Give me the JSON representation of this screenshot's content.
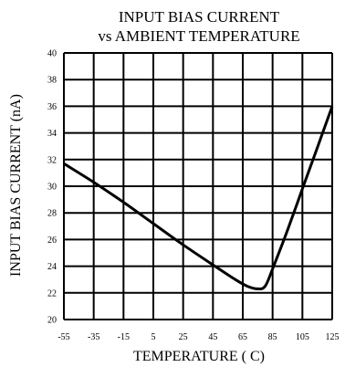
{
  "chart_data": {
    "type": "line",
    "title_lines": [
      "INPUT BIAS CURRENT",
      "vs AMBIENT TEMPERATURE"
    ],
    "xlabel": "TEMPERATURE ( C)",
    "ylabel": "INPUT BIAS CURRENT (nA)",
    "xlim": [
      -55,
      125
    ],
    "ylim": [
      20,
      40
    ],
    "x_ticks": [
      -55,
      -35,
      -15,
      5,
      25,
      45,
      65,
      85,
      105,
      125
    ],
    "y_ticks": [
      20,
      22,
      24,
      26,
      28,
      30,
      32,
      34,
      36,
      38,
      40
    ],
    "grid": true,
    "series": [
      {
        "x": [
          -55,
          -35,
          -15,
          5,
          25,
          45,
          60,
          68,
          75,
          80,
          85,
          95,
          105,
          115,
          125
        ],
        "y": [
          31.7,
          30.3,
          28.8,
          27.2,
          25.6,
          24.1,
          23.0,
          22.5,
          22.3,
          22.5,
          23.8,
          26.7,
          29.8,
          32.9,
          36.0
        ]
      }
    ],
    "line_color": "#000000"
  }
}
